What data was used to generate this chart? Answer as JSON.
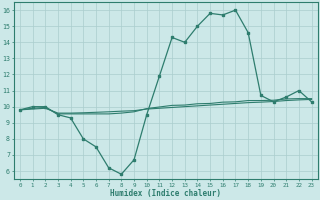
{
  "x": [
    0,
    1,
    2,
    3,
    4,
    5,
    6,
    7,
    8,
    9,
    10,
    11,
    12,
    13,
    14,
    15,
    16,
    17,
    18,
    19,
    20,
    21,
    22,
    23
  ],
  "line1": [
    9.8,
    10.0,
    10.0,
    9.5,
    9.3,
    8.0,
    7.5,
    6.2,
    5.8,
    6.7,
    9.5,
    11.9,
    14.3,
    14.0,
    15.0,
    15.8,
    15.7,
    16.0,
    14.6,
    10.7,
    10.3,
    10.6,
    11.0,
    10.3
  ],
  "line2": [
    9.8,
    9.85,
    9.9,
    9.6,
    9.6,
    9.62,
    9.65,
    9.68,
    9.72,
    9.75,
    9.85,
    9.9,
    9.95,
    10.0,
    10.05,
    10.1,
    10.15,
    10.2,
    10.25,
    10.28,
    10.32,
    10.38,
    10.42,
    10.45
  ],
  "line3": [
    9.8,
    9.9,
    9.95,
    9.55,
    9.55,
    9.55,
    9.55,
    9.55,
    9.6,
    9.68,
    9.88,
    9.98,
    10.08,
    10.1,
    10.18,
    10.2,
    10.28,
    10.3,
    10.38,
    10.38,
    10.4,
    10.48,
    10.5,
    10.5
  ],
  "line_color": "#2e7d6e",
  "bg_color": "#cce8e8",
  "grid_color": "#aacece",
  "xlabel": "Humidex (Indice chaleur)",
  "ylim": [
    5.5,
    16.5
  ],
  "xlim": [
    -0.5,
    23.5
  ],
  "yticks": [
    6,
    7,
    8,
    9,
    10,
    11,
    12,
    13,
    14,
    15,
    16
  ],
  "xticks": [
    0,
    1,
    2,
    3,
    4,
    5,
    6,
    7,
    8,
    9,
    10,
    11,
    12,
    13,
    14,
    15,
    16,
    17,
    18,
    19,
    20,
    21,
    22,
    23
  ],
  "xtick_labels": [
    "0",
    "1",
    "2",
    "3",
    "4",
    "5",
    "6",
    "7",
    "8",
    "9",
    "10",
    "11",
    "12",
    "13",
    "14",
    "15",
    "16",
    "17",
    "18",
    "19",
    "20",
    "21",
    "22",
    "23"
  ]
}
